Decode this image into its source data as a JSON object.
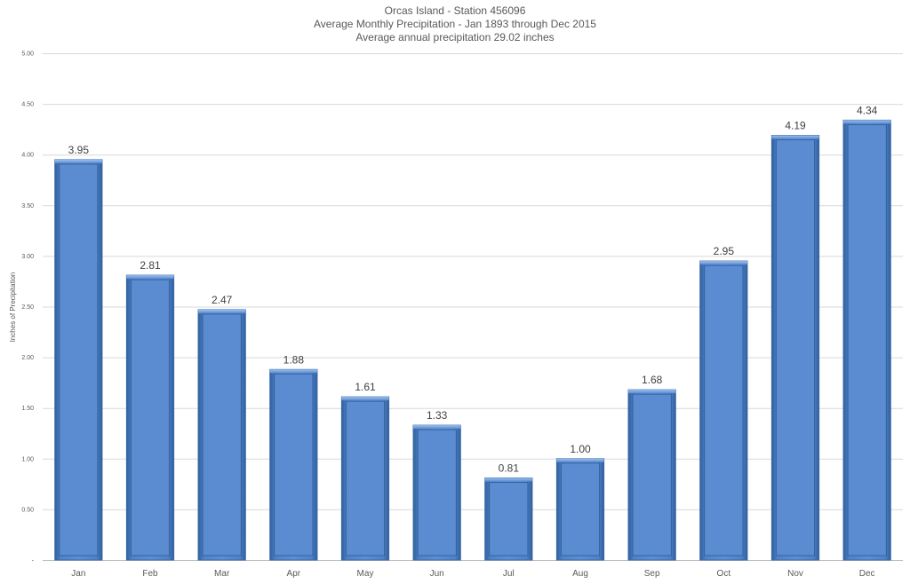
{
  "chart_data": {
    "type": "bar",
    "title": [
      "Orcas Island - Station 456096",
      "Average Monthly Precipitation - Jan 1893 through Dec 2015",
      "Average annual precipitation 29.02 inches"
    ],
    "xlabel": "",
    "ylabel": "Inches of Precipitation",
    "categories": [
      "Jan",
      "Feb",
      "Mar",
      "Apr",
      "May",
      "Jun",
      "Jul",
      "Aug",
      "Sep",
      "Oct",
      "Nov",
      "Dec"
    ],
    "values": [
      3.95,
      2.81,
      2.47,
      1.88,
      1.61,
      1.33,
      0.81,
      1.0,
      1.68,
      2.95,
      4.19,
      4.34
    ],
    "data_labels": [
      "3.95",
      "2.81",
      "2.47",
      "1.88",
      "1.61",
      "1.33",
      "0.81",
      "1.00",
      "1.68",
      "2.95",
      "4.19",
      "4.34"
    ],
    "ylim": [
      0,
      5
    ],
    "y_ticks": [
      0,
      0.5,
      1,
      1.5,
      2,
      2.5,
      3,
      3.5,
      4,
      4.5,
      5
    ],
    "y_tick_labels": [
      "-",
      "0.50",
      "1.00",
      "1.50",
      "2.00",
      "2.50",
      "3.00",
      "3.50",
      "4.00",
      "4.50",
      "5.00"
    ],
    "grid": true,
    "legend": "none",
    "bar_color": "#5b8bd0",
    "bar_edge_color": "#3a6aa8"
  }
}
